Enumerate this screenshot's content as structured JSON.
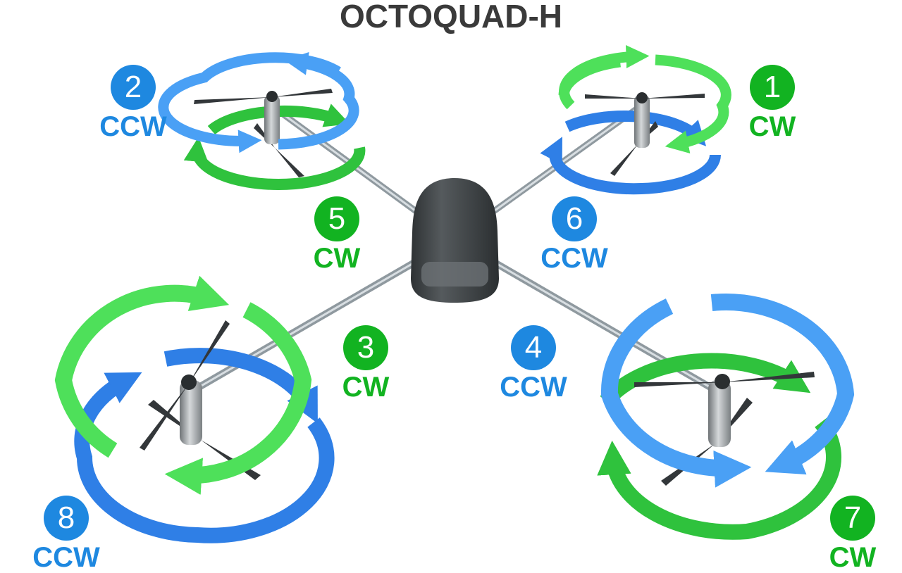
{
  "title": "OCTOQUAD-H",
  "colors": {
    "cw": "#12b321",
    "ccw": "#1e88e0",
    "cw_ring": "#4ee05a",
    "ccw_ring": "#3a8ef0"
  },
  "motors": [
    {
      "number": "1",
      "direction": "CW",
      "kind": "cw"
    },
    {
      "number": "2",
      "direction": "CCW",
      "kind": "ccw"
    },
    {
      "number": "3",
      "direction": "CW",
      "kind": "cw"
    },
    {
      "number": "4",
      "direction": "CCW",
      "kind": "ccw"
    },
    {
      "number": "5",
      "direction": "CW",
      "kind": "cw"
    },
    {
      "number": "6",
      "direction": "CCW",
      "kind": "ccw"
    },
    {
      "number": "7",
      "direction": "CW",
      "kind": "cw"
    },
    {
      "number": "8",
      "direction": "CCW",
      "kind": "ccw"
    }
  ]
}
